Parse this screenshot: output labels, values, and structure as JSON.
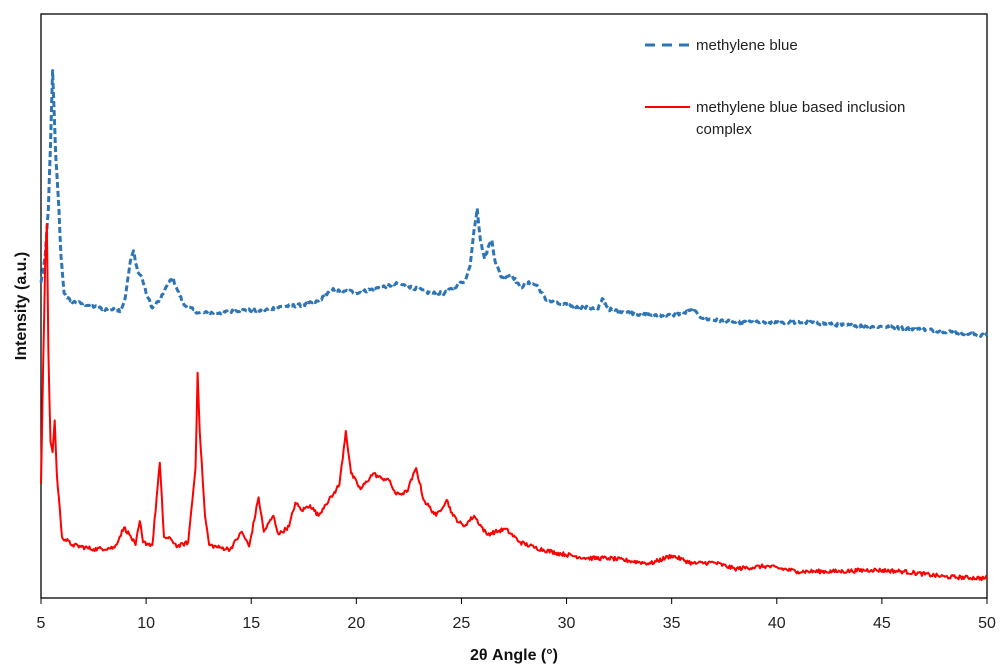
{
  "chart_data": {
    "type": "line",
    "xlabel": "2θ Angle (°)",
    "ylabel": "Intensity (a.u.)",
    "xlim": [
      5,
      50
    ],
    "x_ticks": [
      "5",
      "10",
      "15",
      "20",
      "25",
      "30",
      "35",
      "40",
      "45",
      "50"
    ],
    "y_ticks_shown": false,
    "grid": false,
    "legend_position": "top-right",
    "series": [
      {
        "name": "methylene blue",
        "color": "#2E75B6",
        "line_style": "dashed",
        "points": [
          [
            5.0,
            0.58
          ],
          [
            5.2,
            0.63
          ],
          [
            5.35,
            0.72
          ],
          [
            5.45,
            0.84
          ],
          [
            5.55,
            0.98
          ],
          [
            5.7,
            0.82
          ],
          [
            5.85,
            0.72
          ],
          [
            5.95,
            0.63
          ],
          [
            6.1,
            0.56
          ],
          [
            6.4,
            0.545
          ],
          [
            7.0,
            0.54
          ],
          [
            8.0,
            0.53
          ],
          [
            8.8,
            0.528
          ],
          [
            9.0,
            0.55
          ],
          [
            9.25,
            0.62
          ],
          [
            9.4,
            0.64
          ],
          [
            9.6,
            0.6
          ],
          [
            9.8,
            0.59
          ],
          [
            10.0,
            0.56
          ],
          [
            10.3,
            0.532
          ],
          [
            10.7,
            0.55
          ],
          [
            11.0,
            0.575
          ],
          [
            11.25,
            0.59
          ],
          [
            11.5,
            0.565
          ],
          [
            11.8,
            0.538
          ],
          [
            12.5,
            0.523
          ],
          [
            13.5,
            0.523
          ],
          [
            14.5,
            0.528
          ],
          [
            15.5,
            0.527
          ],
          [
            16.5,
            0.535
          ],
          [
            17.5,
            0.538
          ],
          [
            18.2,
            0.545
          ],
          [
            18.8,
            0.565
          ],
          [
            19.0,
            0.568
          ],
          [
            19.3,
            0.56
          ],
          [
            19.6,
            0.565
          ],
          [
            20.0,
            0.56
          ],
          [
            21.0,
            0.57
          ],
          [
            22.0,
            0.578
          ],
          [
            22.5,
            0.572
          ],
          [
            23.0,
            0.567
          ],
          [
            23.5,
            0.56
          ],
          [
            24.2,
            0.56
          ],
          [
            24.8,
            0.575
          ],
          [
            25.2,
            0.585
          ],
          [
            25.4,
            0.61
          ],
          [
            25.6,
            0.68
          ],
          [
            25.75,
            0.72
          ],
          [
            25.9,
            0.66
          ],
          [
            26.1,
            0.625
          ],
          [
            26.3,
            0.65
          ],
          [
            26.45,
            0.66
          ],
          [
            26.6,
            0.62
          ],
          [
            26.9,
            0.59
          ],
          [
            27.4,
            0.595
          ],
          [
            27.8,
            0.57
          ],
          [
            28.1,
            0.58
          ],
          [
            28.6,
            0.575
          ],
          [
            29.0,
            0.548
          ],
          [
            29.6,
            0.54
          ],
          [
            30.5,
            0.535
          ],
          [
            31.5,
            0.53
          ],
          [
            31.7,
            0.55
          ],
          [
            32.0,
            0.53
          ],
          [
            33.5,
            0.52
          ],
          [
            35.0,
            0.518
          ],
          [
            35.6,
            0.523
          ],
          [
            36.0,
            0.528
          ],
          [
            36.5,
            0.512
          ],
          [
            38.0,
            0.505
          ],
          [
            40.0,
            0.505
          ],
          [
            41.5,
            0.505
          ],
          [
            43.0,
            0.5
          ],
          [
            45.0,
            0.497
          ],
          [
            47.5,
            0.49
          ],
          [
            50.0,
            0.48
          ]
        ]
      },
      {
        "name": "methylene blue based inclusion complex",
        "color": "#FF0000",
        "line_style": "solid",
        "points": [
          [
            5.0,
            0.2
          ],
          [
            5.1,
            0.42
          ],
          [
            5.2,
            0.62
          ],
          [
            5.28,
            0.69
          ],
          [
            5.35,
            0.45
          ],
          [
            5.45,
            0.28
          ],
          [
            5.55,
            0.26
          ],
          [
            5.65,
            0.32
          ],
          [
            5.75,
            0.22
          ],
          [
            6.0,
            0.1
          ],
          [
            6.5,
            0.085
          ],
          [
            7.5,
            0.077
          ],
          [
            8.5,
            0.08
          ],
          [
            8.95,
            0.118
          ],
          [
            9.2,
            0.105
          ],
          [
            9.5,
            0.085
          ],
          [
            9.7,
            0.13
          ],
          [
            9.85,
            0.09
          ],
          [
            10.3,
            0.085
          ],
          [
            10.65,
            0.24
          ],
          [
            10.85,
            0.1
          ],
          [
            11.2,
            0.095
          ],
          [
            11.5,
            0.082
          ],
          [
            12.0,
            0.09
          ],
          [
            12.35,
            0.23
          ],
          [
            12.45,
            0.41
          ],
          [
            12.55,
            0.3
          ],
          [
            12.8,
            0.14
          ],
          [
            13.0,
            0.085
          ],
          [
            13.5,
            0.08
          ],
          [
            14.0,
            0.077
          ],
          [
            14.55,
            0.11
          ],
          [
            14.9,
            0.082
          ],
          [
            15.35,
            0.175
          ],
          [
            15.6,
            0.11
          ],
          [
            16.05,
            0.14
          ],
          [
            16.3,
            0.105
          ],
          [
            16.8,
            0.12
          ],
          [
            17.1,
            0.165
          ],
          [
            17.4,
            0.15
          ],
          [
            17.8,
            0.16
          ],
          [
            18.2,
            0.14
          ],
          [
            18.5,
            0.16
          ],
          [
            18.9,
            0.18
          ],
          [
            19.2,
            0.2
          ],
          [
            19.5,
            0.3
          ],
          [
            19.75,
            0.22
          ],
          [
            20.2,
            0.19
          ],
          [
            20.8,
            0.22
          ],
          [
            21.2,
            0.21
          ],
          [
            21.5,
            0.21
          ],
          [
            21.9,
            0.18
          ],
          [
            22.4,
            0.185
          ],
          [
            22.85,
            0.23
          ],
          [
            23.2,
            0.17
          ],
          [
            23.8,
            0.14
          ],
          [
            24.3,
            0.17
          ],
          [
            24.6,
            0.14
          ],
          [
            25.1,
            0.12
          ],
          [
            25.6,
            0.14
          ],
          [
            26.2,
            0.105
          ],
          [
            27.1,
            0.115
          ],
          [
            27.8,
            0.09
          ],
          [
            28.5,
            0.08
          ],
          [
            29.5,
            0.07
          ],
          [
            31.0,
            0.06
          ],
          [
            32.0,
            0.06
          ],
          [
            33.0,
            0.055
          ],
          [
            34.0,
            0.05
          ],
          [
            35.0,
            0.065
          ],
          [
            36.0,
            0.05
          ],
          [
            37.0,
            0.052
          ],
          [
            38.0,
            0.04
          ],
          [
            39.5,
            0.045
          ],
          [
            41.0,
            0.035
          ],
          [
            43.0,
            0.035
          ],
          [
            44.5,
            0.038
          ],
          [
            46.0,
            0.035
          ],
          [
            48.0,
            0.025
          ],
          [
            50.0,
            0.022
          ]
        ]
      }
    ]
  }
}
